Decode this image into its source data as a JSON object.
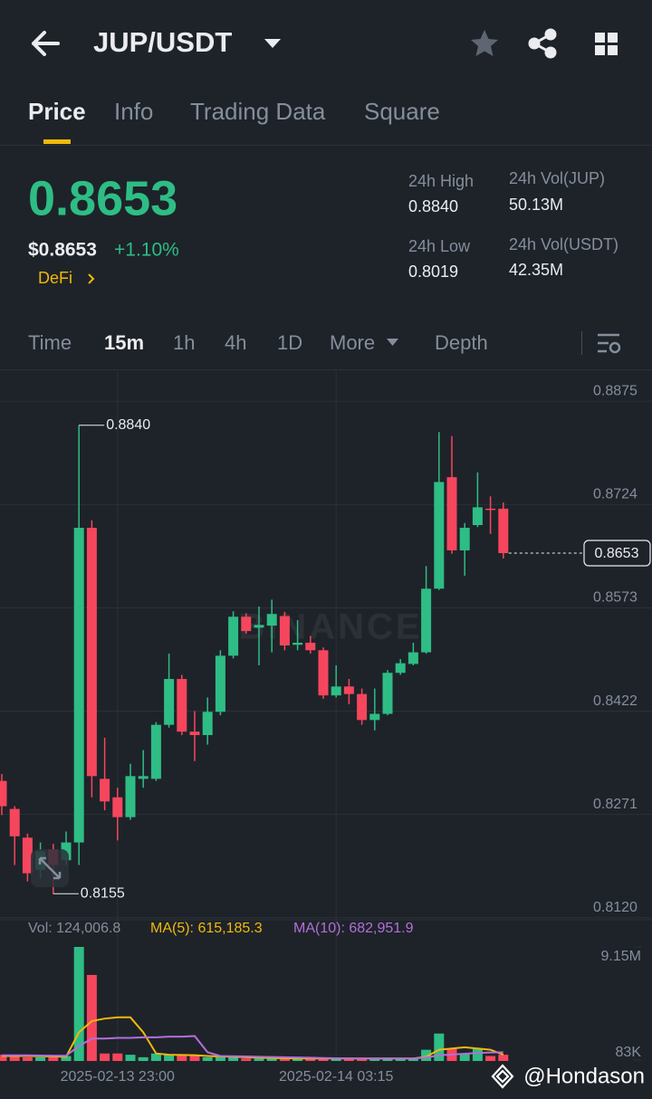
{
  "header": {
    "title": "JUP/USDT"
  },
  "tabs": [
    "Price",
    "Info",
    "Trading Data",
    "Square"
  ],
  "ticker": {
    "price": "0.8653",
    "usd_price": "$0.8653",
    "change": "+1.10%",
    "tag": "DeFi"
  },
  "stats": [
    {
      "label": "24h High",
      "value": "0.8840"
    },
    {
      "label": "24h Vol(JUP)",
      "value": "50.13M"
    },
    {
      "label": "24h Low",
      "value": "0.8019"
    },
    {
      "label": "24h Vol(USDT)",
      "value": "42.35M"
    }
  ],
  "intervals": [
    "Time",
    "15m",
    "1h",
    "4h",
    "1D",
    "More",
    "Depth"
  ],
  "chart_data": {
    "type": "candlestick",
    "watermark": "BINANCE",
    "categories": [
      null,
      null,
      null,
      null,
      null,
      null,
      null,
      null,
      null,
      "2025-02-13 23:00",
      null,
      null,
      null,
      null,
      null,
      null,
      null,
      null,
      null,
      null,
      null,
      null,
      null,
      null,
      null,
      null,
      "2025-02-14 03:15",
      null,
      null,
      null,
      null,
      null,
      null,
      null,
      null,
      null,
      null,
      null,
      null,
      null
    ],
    "open": [
      0.832,
      0.8279,
      0.8237,
      0.819,
      0.822,
      0.8204,
      0.823,
      0.869,
      0.8323,
      0.8296,
      0.8267,
      0.8323,
      0.8323,
      0.8402,
      0.8469,
      0.8392,
      0.8387,
      0.8421,
      0.8503,
      0.856,
      0.8544,
      0.8547,
      0.8561,
      0.8519,
      0.8522,
      0.8511,
      0.8445,
      0.8458,
      0.8447,
      0.8409,
      0.8418,
      0.8478,
      0.8491,
      0.8508,
      0.8601,
      0.8764,
      0.8657,
      0.8694,
      0.8718,
      0.8718
    ],
    "high": [
      0.833,
      0.8283,
      0.8243,
      0.823,
      0.8228,
      0.8246,
      0.884,
      0.8701,
      0.8383,
      0.831,
      0.8345,
      0.8365,
      0.8406,
      0.8506,
      0.8475,
      0.8422,
      0.8442,
      0.8511,
      0.8568,
      0.8565,
      0.8575,
      0.8585,
      0.8567,
      0.8555,
      0.8532,
      0.8515,
      0.8489,
      0.8469,
      0.8455,
      0.8455,
      0.8482,
      0.8498,
      0.8522,
      0.8634,
      0.883,
      0.8824,
      0.8697,
      0.8771,
      0.8736,
      0.8727
    ],
    "low": [
      0.827,
      0.8197,
      0.8173,
      0.8177,
      0.8155,
      0.8197,
      0.8197,
      0.8296,
      0.8277,
      0.8233,
      0.8263,
      0.831,
      0.832,
      0.8398,
      0.8387,
      0.8349,
      0.8373,
      0.8416,
      0.8499,
      0.8535,
      0.8489,
      0.8508,
      0.8511,
      0.8511,
      0.8506,
      0.844,
      0.8442,
      0.8432,
      0.8402,
      0.8394,
      0.8416,
      0.8475,
      0.8489,
      0.8506,
      0.8599,
      0.8652,
      0.862,
      0.8691,
      0.8681,
      0.8645
    ],
    "close": [
      0.8283,
      0.8239,
      0.8185,
      0.8217,
      0.8197,
      0.823,
      0.869,
      0.8327,
      0.829,
      0.8267,
      0.8327,
      0.8327,
      0.8402,
      0.8469,
      0.8392,
      0.8387,
      0.8421,
      0.8503,
      0.856,
      0.8539,
      0.8548,
      0.8564,
      0.8518,
      0.8522,
      0.8511,
      0.8445,
      0.8458,
      0.8447,
      0.8409,
      0.8418,
      0.8478,
      0.8492,
      0.8508,
      0.8601,
      0.8757,
      0.8657,
      0.869,
      0.872,
      0.8717,
      0.8653
    ],
    "up_color": "#2ebd85",
    "down_color": "#f6465d",
    "ylim": [
      0.8117,
      0.8919
    ],
    "yticks": [
      {
        "value": 0.8875,
        "label": "0.8875"
      },
      {
        "value": 0.8724,
        "label": "0.8724"
      },
      {
        "value": 0.8573,
        "label": "0.8573"
      },
      {
        "value": 0.8422,
        "label": "0.8422"
      },
      {
        "value": 0.8271,
        "label": "0.8271"
      },
      {
        "value": 0.812,
        "label": "0.8120"
      }
    ],
    "high_marker": {
      "value": 0.884,
      "label": "0.8840"
    },
    "low_marker": {
      "value": 0.8155,
      "label": "0.8155"
    },
    "last_price": {
      "value": 0.8653,
      "label": "0.8653"
    },
    "volume": {
      "legend": {
        "vol": "Vol: 124,006.8",
        "ma5": "MA(5): 615,185.3",
        "ma10": "MA(10): 682,951.9"
      },
      "values": [
        500000,
        400000,
        300000,
        300000,
        300000,
        400000,
        9150000,
        6900000,
        600000,
        600000,
        500000,
        300000,
        600000,
        500000,
        500000,
        400000,
        300000,
        300000,
        300000,
        200000,
        200000,
        200000,
        200000,
        200000,
        200000,
        200000,
        200000,
        200000,
        200000,
        200000,
        200000,
        200000,
        200000,
        900000,
        2200000,
        1000000,
        600000,
        1000000,
        400000,
        500000
      ],
      "ma5": [
        400000,
        400000,
        400000,
        380000,
        360000,
        340000,
        2300000,
        3200000,
        3400000,
        3500000,
        3500000,
        2300000,
        600000,
        500000,
        480000,
        460000,
        400000,
        360000,
        340000,
        300000,
        260000,
        240000,
        220000,
        200000,
        200000,
        200000,
        200000,
        200000,
        200000,
        200000,
        200000,
        200000,
        200000,
        340000,
        900000,
        1000000,
        1100000,
        1000000,
        900000,
        500000
      ],
      "ma10": [
        450000,
        450000,
        450000,
        440000,
        430000,
        420000,
        1200000,
        1800000,
        1800000,
        1850000,
        1850000,
        1900000,
        1900000,
        1950000,
        1950000,
        2000000,
        700000,
        400000,
        380000,
        360000,
        340000,
        320000,
        300000,
        280000,
        260000,
        240000,
        220000,
        200000,
        200000,
        200000,
        200000,
        200000,
        200000,
        280000,
        450000,
        520000,
        580000,
        640000,
        680000,
        700000
      ],
      "ma5_color": "#f0b90b",
      "ma10_color": "#b26fd9",
      "ylim": [
        0,
        9150000
      ],
      "yticks": [
        {
          "value": 9150000,
          "label": "9.15M"
        },
        {
          "value": 83000,
          "label": "83K"
        }
      ]
    }
  },
  "watermark": "@Hondason"
}
